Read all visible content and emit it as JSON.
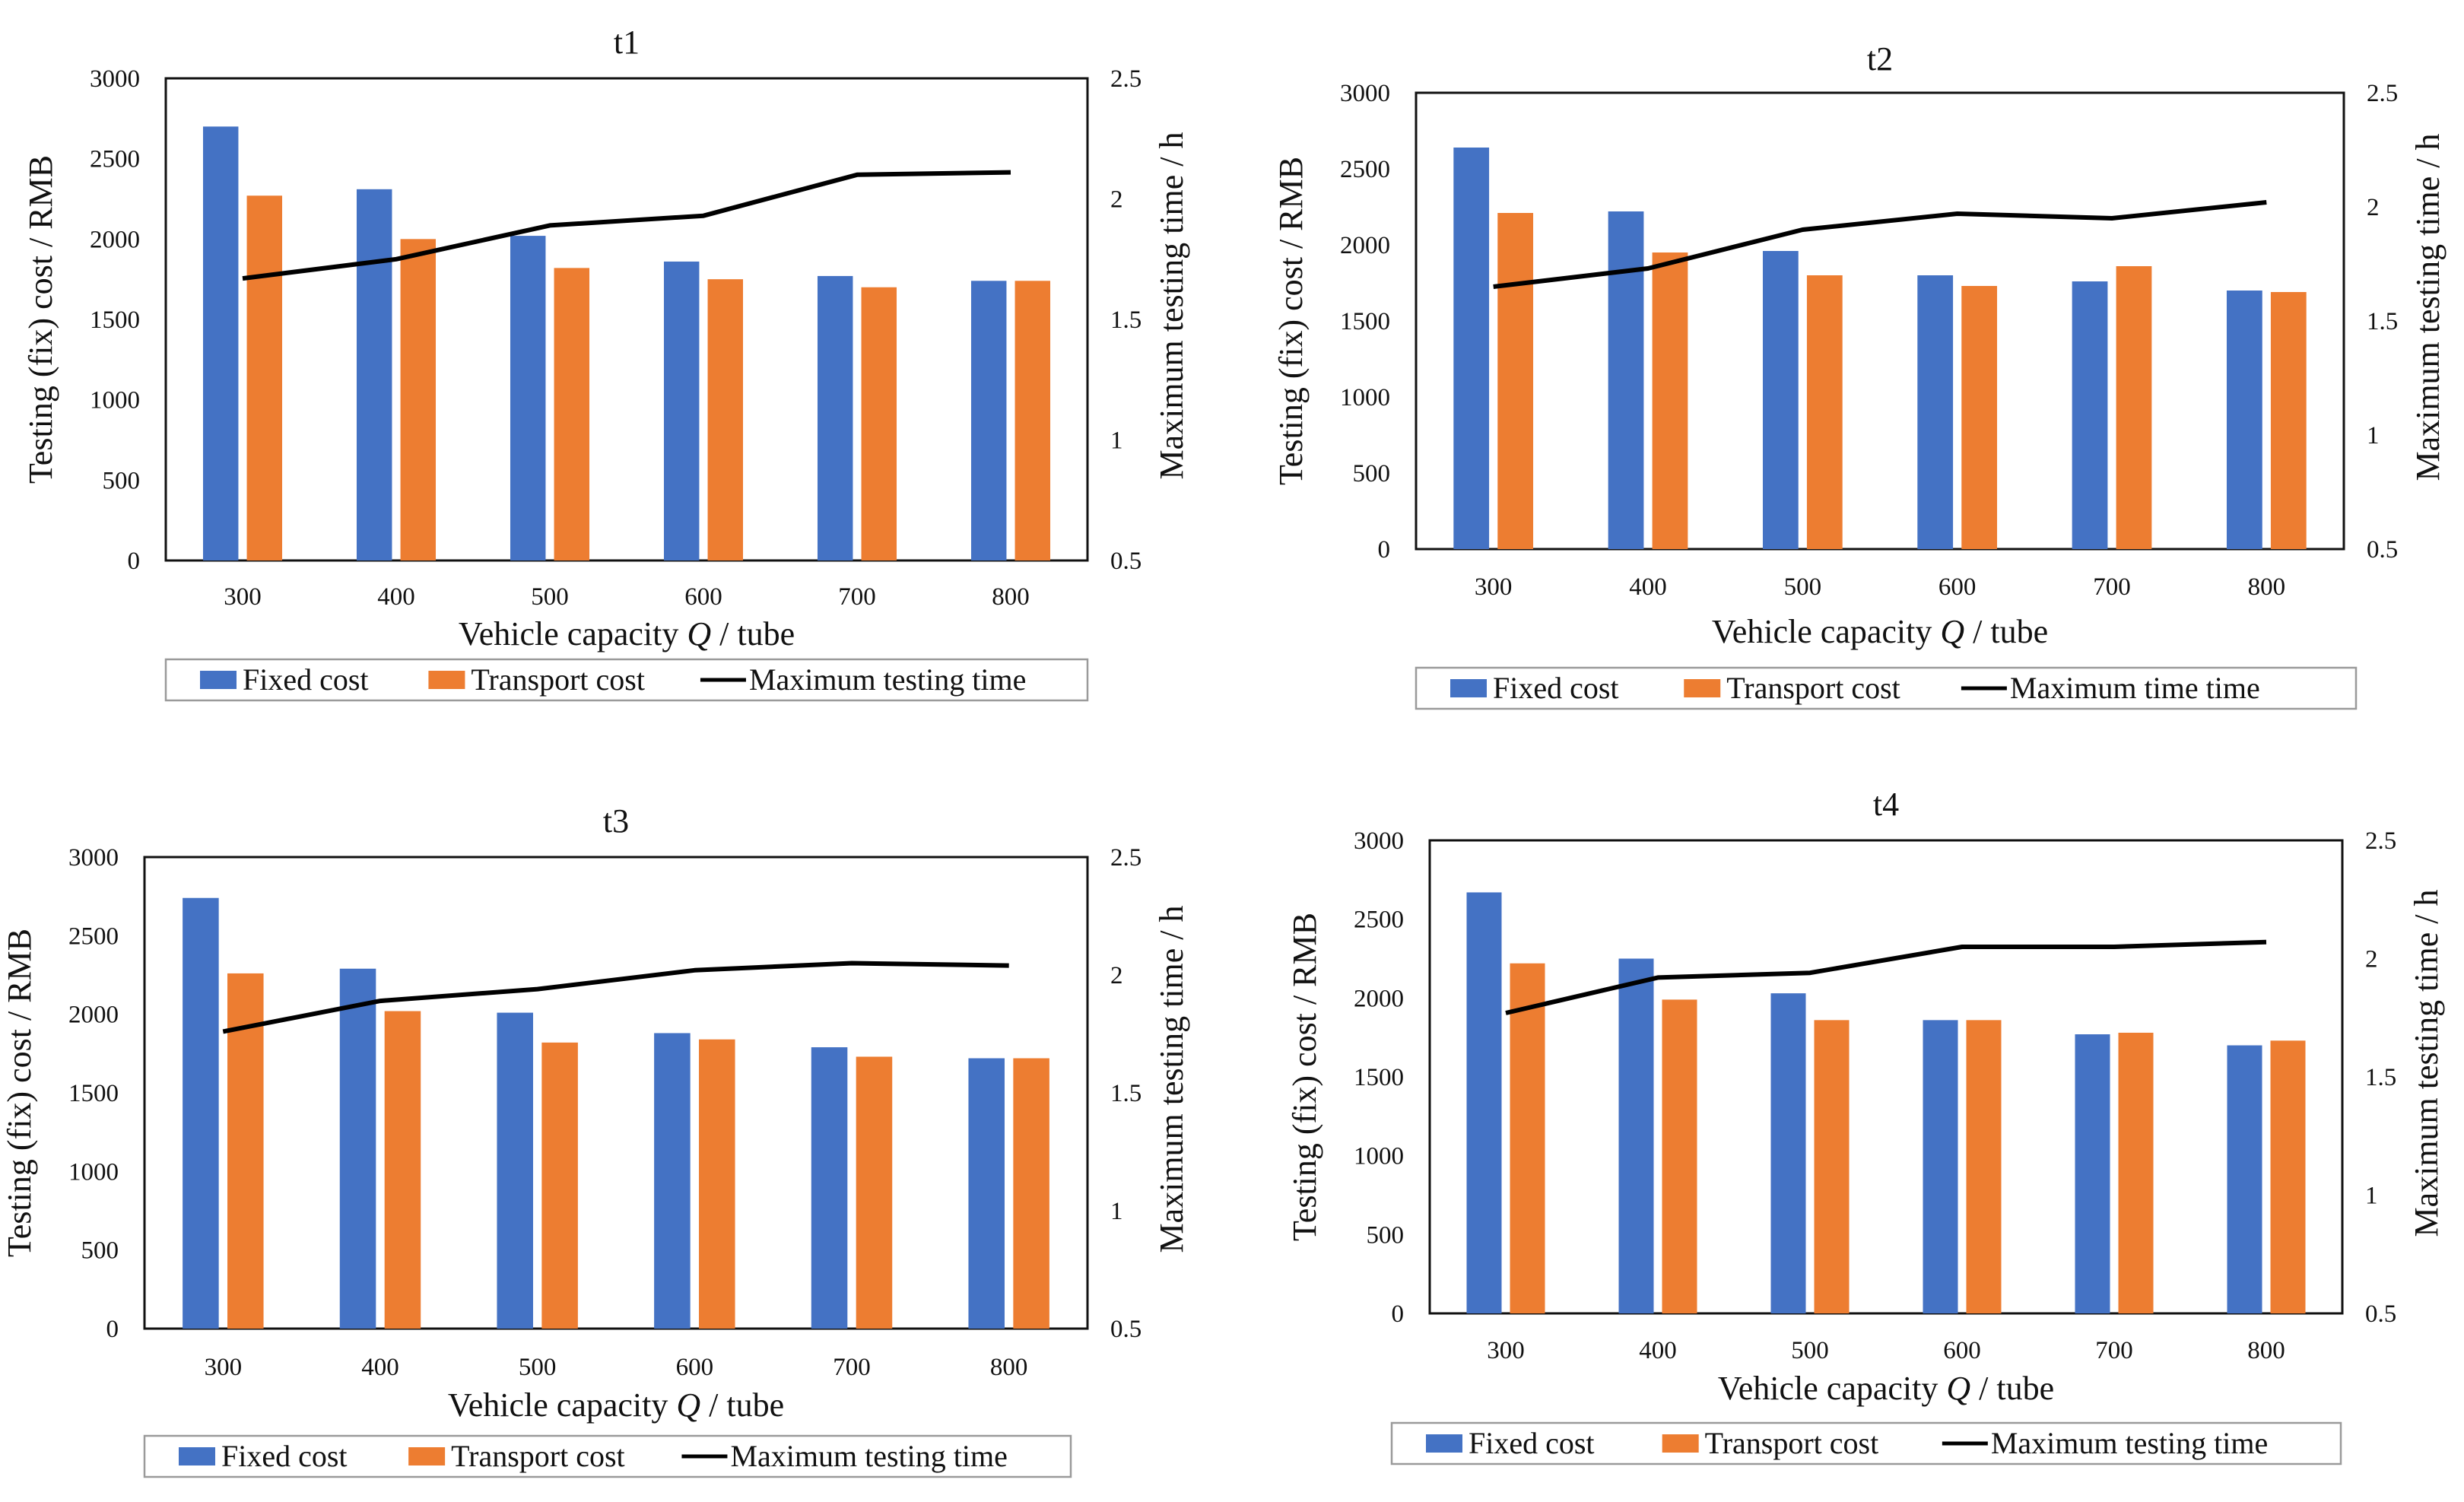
{
  "colors": {
    "fixed": "#4472C4",
    "transport": "#ED7D31",
    "line": "#000000"
  },
  "chart_data": [
    {
      "type": "bar+line",
      "title": "t1",
      "categories": [
        "300",
        "400",
        "500",
        "600",
        "700",
        "800"
      ],
      "series": [
        {
          "name": "Fixed cost",
          "kind": "bar",
          "axis": "left",
          "values": [
            2700,
            2310,
            2020,
            1860,
            1770,
            1740
          ]
        },
        {
          "name": "Transport cost",
          "kind": "bar",
          "axis": "left",
          "values": [
            2270,
            2000,
            1820,
            1750,
            1700,
            1740
          ]
        },
        {
          "name": "Maximum testing time",
          "kind": "line",
          "axis": "right",
          "values": [
            1.67,
            1.75,
            1.89,
            1.93,
            2.1,
            2.11
          ]
        }
      ],
      "xlabel_pre": "Vehicle capacity ",
      "xlabel_var": "Q",
      "xlabel_post": " / tube",
      "ylabel": "Testing (fix) cost / RMB",
      "y2label": "Maximum testing time / h",
      "ylim": [
        0,
        3000
      ],
      "yticks": [
        "0",
        "500",
        "1000",
        "1500",
        "2000",
        "2500",
        "3000"
      ],
      "y2lim": [
        0.5,
        2.5
      ],
      "y2ticks": [
        "0.5",
        "1",
        "1.5",
        "2",
        "2.5"
      ],
      "legend": [
        "Fixed cost",
        "Transport cost",
        "Maximum testing time"
      ]
    },
    {
      "type": "bar+line",
      "title": "t2",
      "categories": [
        "300",
        "400",
        "500",
        "600",
        "700",
        "800"
      ],
      "series": [
        {
          "name": "Fixed cost",
          "kind": "bar",
          "axis": "left",
          "values": [
            2640,
            2220,
            1960,
            1800,
            1760,
            1700
          ]
        },
        {
          "name": "Transport cost",
          "kind": "bar",
          "axis": "left",
          "values": [
            2210,
            1950,
            1800,
            1730,
            1860,
            1690
          ]
        },
        {
          "name": "Maximum time time",
          "kind": "line",
          "axis": "right",
          "values": [
            1.65,
            1.73,
            1.9,
            1.97,
            1.95,
            2.02
          ]
        }
      ],
      "xlabel_pre": "Vehicle capacity ",
      "xlabel_var": "Q",
      "xlabel_post": " / tube",
      "ylabel": "Testing (fix) cost / RMB",
      "y2label": "Maximum testing time / h",
      "ylim": [
        0,
        3000
      ],
      "yticks": [
        "0",
        "500",
        "1000",
        "1500",
        "2000",
        "2500",
        "3000"
      ],
      "y2lim": [
        0.5,
        2.5
      ],
      "y2ticks": [
        "0.5",
        "1",
        "1.5",
        "2",
        "2.5"
      ],
      "legend": [
        "Fixed cost",
        "Transport cost",
        "Maximum time time"
      ]
    },
    {
      "type": "bar+line",
      "title": "t3",
      "categories": [
        "300",
        "400",
        "500",
        "600",
        "700",
        "800"
      ],
      "series": [
        {
          "name": "Fixed cost",
          "kind": "bar",
          "axis": "left",
          "values": [
            2740,
            2290,
            2010,
            1880,
            1790,
            1720
          ]
        },
        {
          "name": "Transport cost",
          "kind": "bar",
          "axis": "left",
          "values": [
            2260,
            2020,
            1820,
            1840,
            1730,
            1720
          ]
        },
        {
          "name": "Maximum testing time",
          "kind": "line",
          "axis": "right",
          "values": [
            1.76,
            1.89,
            1.94,
            2.02,
            2.05,
            2.04
          ]
        }
      ],
      "xlabel_pre": "Vehicle capacity ",
      "xlabel_var": "Q",
      "xlabel_post": " / tube",
      "ylabel": "Testing (fix) cost / RMB",
      "y2label": "Maximum testing time / h",
      "ylim": [
        0,
        3000
      ],
      "yticks": [
        "0",
        "500",
        "1000",
        "1500",
        "2000",
        "2500",
        "3000"
      ],
      "y2lim": [
        0.5,
        2.5
      ],
      "y2ticks": [
        "0.5",
        "1",
        "1.5",
        "2",
        "2.5"
      ],
      "legend": [
        "Fixed cost",
        "Transport cost",
        "Maximum testing time"
      ]
    },
    {
      "type": "bar+line",
      "title": "t4",
      "categories": [
        "300",
        "400",
        "500",
        "600",
        "700",
        "800"
      ],
      "series": [
        {
          "name": "Fixed cost",
          "kind": "bar",
          "axis": "left",
          "values": [
            2670,
            2250,
            2030,
            1860,
            1770,
            1700
          ]
        },
        {
          "name": "Transport cost",
          "kind": "bar",
          "axis": "left",
          "values": [
            2220,
            1990,
            1860,
            1860,
            1780,
            1730
          ]
        },
        {
          "name": "Maximum testing time",
          "kind": "line",
          "axis": "right",
          "values": [
            1.77,
            1.92,
            1.94,
            2.05,
            2.05,
            2.07
          ]
        }
      ],
      "xlabel_pre": "Vehicle capacity ",
      "xlabel_var": "Q",
      "xlabel_post": " / tube",
      "ylabel": "Testing (fix) cost / RMB",
      "y2label": "Maximum testing time / h",
      "ylim": [
        0,
        3000
      ],
      "yticks": [
        "0",
        "500",
        "1000",
        "1500",
        "2000",
        "2500",
        "3000"
      ],
      "y2lim": [
        0.5,
        2.5
      ],
      "y2ticks": [
        "0.5",
        "1",
        "1.5",
        "2",
        "2.5"
      ],
      "legend": [
        "Fixed cost",
        "Transport cost",
        "Maximum testing time"
      ]
    }
  ]
}
